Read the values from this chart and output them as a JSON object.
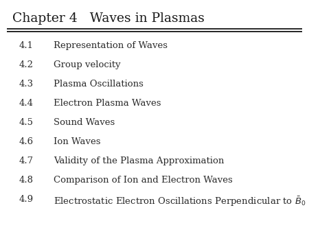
{
  "title": "Chapter 4   Waves in Plasmas",
  "title_fontsize": 13.5,
  "sections": [
    {
      "num": "4.1",
      "text": "Representation of Waves"
    },
    {
      "num": "4.2",
      "text": "Group velocity"
    },
    {
      "num": "4.3",
      "text": "Plasma Oscillations"
    },
    {
      "num": "4.4",
      "text": "Electron Plasma Waves"
    },
    {
      "num": "4.5",
      "text": "Sound Waves"
    },
    {
      "num": "4.6",
      "text": "Ion Waves"
    },
    {
      "num": "4.7",
      "text": "Validity of the Plasma Approximation"
    },
    {
      "num": "4.8",
      "text": "Comparison of Ion and Electron Waves"
    },
    {
      "num": "4.9",
      "text": "Electrostatic Electron Oscillations Perpendicular to "
    }
  ],
  "section_fontsize": 9.5,
  "bg_color": "#ffffff",
  "text_color": "#2a2a2a",
  "title_color": "#1a1a1a",
  "line_color": "#000000"
}
